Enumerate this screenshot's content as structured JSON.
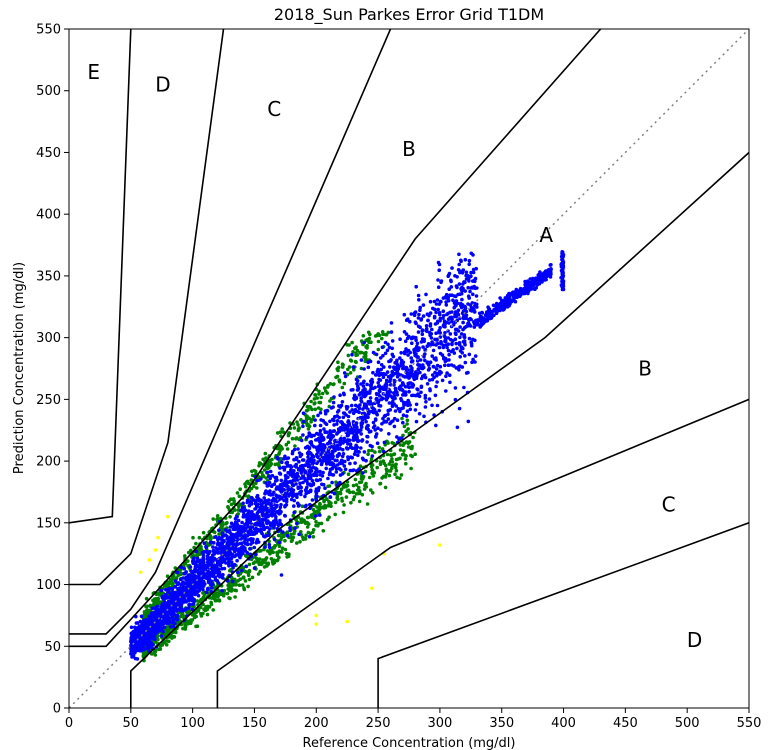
{
  "chart_data": {
    "type": "scatter",
    "title": "2018_Sun Parkes Error Grid T1DM",
    "xlabel": "Reference Concentration (mg/dl)",
    "ylabel": "Prediction Concentration (mg/dl)",
    "xlim": [
      0,
      550
    ],
    "ylim": [
      0,
      550
    ],
    "x_ticks": [
      0,
      50,
      100,
      150,
      200,
      250,
      300,
      350,
      400,
      450,
      500,
      550
    ],
    "y_ticks": [
      0,
      50,
      100,
      150,
      200,
      250,
      300,
      350,
      400,
      450,
      500,
      550
    ],
    "grid": false,
    "legend": "none",
    "identity_line": {
      "style": "dotted",
      "color": "#808080",
      "from": [
        0,
        0
      ],
      "to": [
        550,
        550
      ]
    },
    "zone_boundaries": [
      {
        "points": [
          [
            0,
            50
          ],
          [
            30,
            50
          ],
          [
            140,
            170
          ],
          [
            280,
            380
          ],
          [
            430,
            550
          ]
        ]
      },
      {
        "points": [
          [
            50,
            0
          ],
          [
            50,
            30
          ],
          [
            170,
            145
          ],
          [
            385,
            300
          ],
          [
            550,
            450
          ]
        ]
      },
      {
        "points": [
          [
            0,
            60
          ],
          [
            30,
            60
          ],
          [
            50,
            80
          ],
          [
            70,
            110
          ],
          [
            260,
            550
          ]
        ]
      },
      {
        "points": [
          [
            120,
            0
          ],
          [
            120,
            30
          ],
          [
            260,
            130
          ],
          [
            550,
            250
          ]
        ]
      },
      {
        "points": [
          [
            0,
            100
          ],
          [
            25,
            100
          ],
          [
            50,
            125
          ],
          [
            80,
            215
          ],
          [
            125,
            550
          ]
        ]
      },
      {
        "points": [
          [
            250,
            0
          ],
          [
            250,
            40
          ],
          [
            550,
            150
          ]
        ]
      },
      {
        "points": [
          [
            0,
            150
          ],
          [
            35,
            155
          ],
          [
            50,
            550
          ]
        ]
      }
    ],
    "zone_labels": [
      {
        "text": "E",
        "x": 20,
        "y": 515
      },
      {
        "text": "D",
        "x": 76,
        "y": 505
      },
      {
        "text": "C",
        "x": 166,
        "y": 485
      },
      {
        "text": "B",
        "x": 275,
        "y": 453
      },
      {
        "text": "A",
        "x": 386,
        "y": 383
      },
      {
        "text": "B",
        "x": 466,
        "y": 275
      },
      {
        "text": "C",
        "x": 485,
        "y": 165
      },
      {
        "text": "D",
        "x": 506,
        "y": 55
      }
    ],
    "series": [
      {
        "color": "#0000ff",
        "zone": "A",
        "approx_x_range": [
          48,
          400
        ],
        "approx_y_range": [
          38,
          370
        ]
      },
      {
        "color": "#008000",
        "zone": "B",
        "approx_x_range": [
          55,
          310
        ],
        "approx_y_range": [
          40,
          305
        ]
      },
      {
        "color": "#ffff00",
        "zone": "C",
        "approx_points": [
          [
            65,
            120
          ],
          [
            70,
            128
          ],
          [
            72,
            138
          ],
          [
            80,
            155
          ],
          [
            58,
            110
          ],
          [
            200,
            75
          ],
          [
            200,
            68
          ],
          [
            225,
            70
          ],
          [
            245,
            97
          ],
          [
            255,
            125
          ],
          [
            300,
            132
          ]
        ]
      }
    ]
  }
}
